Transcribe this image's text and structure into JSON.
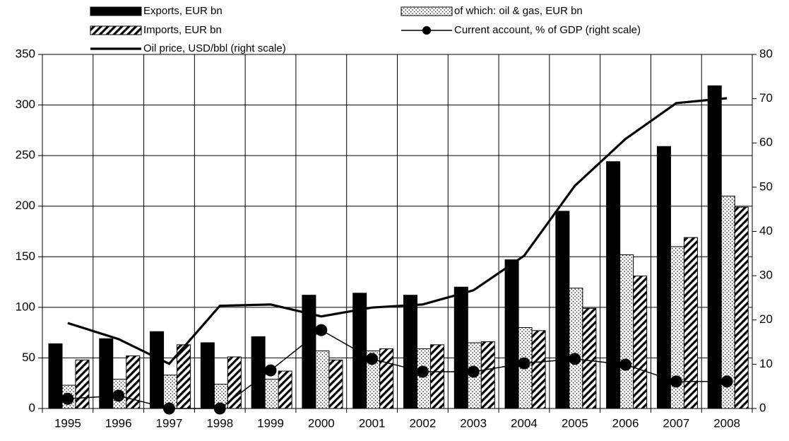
{
  "chart_data": {
    "type": "bar",
    "categories": [
      "1995",
      "1996",
      "1997",
      "1998",
      "1999",
      "2000",
      "2001",
      "2002",
      "2003",
      "2004",
      "2005",
      "2006",
      "2007",
      "2008"
    ],
    "series": [
      {
        "name": "Exports, EUR bn",
        "type": "bar",
        "fill": "solid",
        "color": "#000000",
        "values": [
          64,
          69,
          76,
          65,
          71,
          112,
          114,
          112,
          120,
          147,
          195,
          244,
          259,
          319
        ]
      },
      {
        "name": "of which: oil & gas, EUR bn",
        "type": "bar",
        "fill": "dots",
        "color": "#000000",
        "values": [
          23,
          29,
          33,
          24,
          29,
          57,
          57,
          59,
          65,
          80,
          119,
          152,
          160,
          210
        ]
      },
      {
        "name": "Imports, EUR bn",
        "type": "bar",
        "fill": "stripes",
        "color": "#000000",
        "values": [
          48,
          52,
          63,
          51,
          37,
          48,
          59,
          63,
          66,
          77,
          99,
          131,
          169,
          199
        ]
      },
      {
        "name": "Current account, % of GDP (right scale)",
        "type": "line",
        "marker": "circle",
        "axis": "y2",
        "color": "#000000",
        "values": [
          2.2,
          2.9,
          0,
          0,
          8.6,
          17.7,
          11.2,
          8.3,
          8.3,
          10.2,
          11.2,
          9.9,
          6.1,
          6.1
        ]
      },
      {
        "name": "Oil price, USD/bbl (right scale)",
        "type": "line",
        "axis": "y2",
        "color": "#000000",
        "values": [
          19.3,
          15.7,
          10.1,
          23.2,
          23.5,
          20.8,
          22.8,
          23.5,
          26.7,
          34.5,
          50.3,
          60.9,
          69,
          70.1
        ]
      }
    ],
    "ylim": [
      0,
      350
    ],
    "yticks": [
      0,
      50,
      100,
      150,
      200,
      250,
      300,
      350
    ],
    "y2lim": [
      0,
      80
    ],
    "y2ticks": [
      0,
      10,
      20,
      30,
      40,
      50,
      60,
      70,
      80
    ],
    "grid": true,
    "legend": "top"
  }
}
